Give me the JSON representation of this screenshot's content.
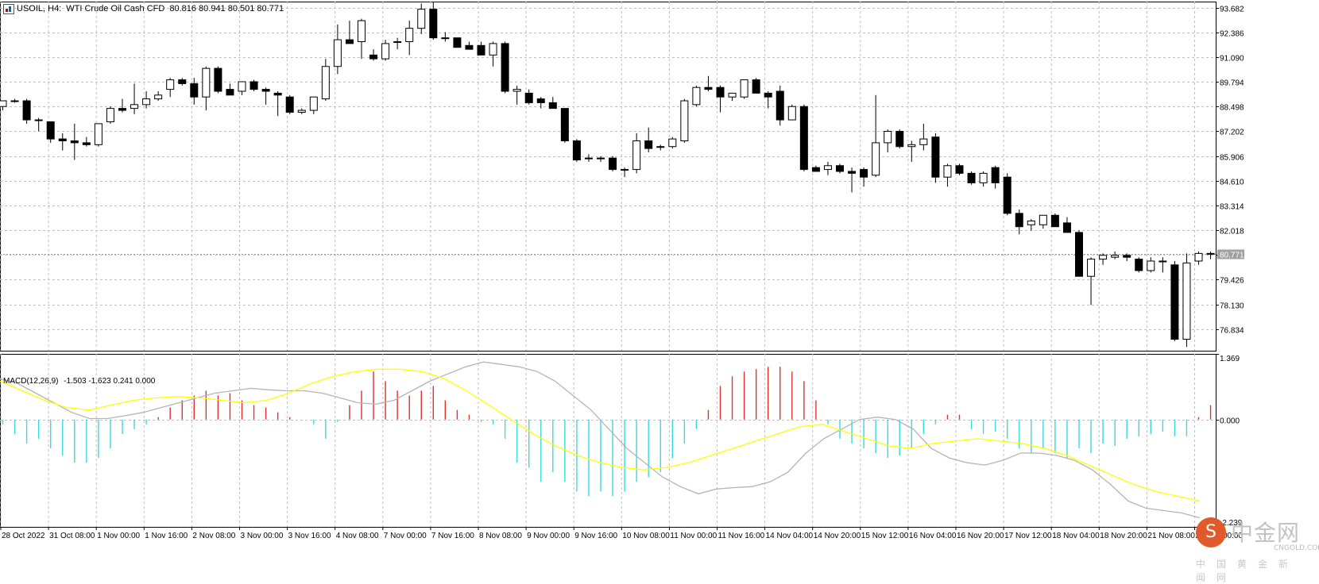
{
  "header": {
    "symbol": "USOIL, H4:",
    "description": "WTI Crude Oil Cash CFD",
    "ohlc": "80.816 80.941 80.501 80.771"
  },
  "macd_header": {
    "name": "MACD(12,26,9)",
    "values": "-1.503 -1.623 0.241 0.000"
  },
  "current_price_label": "80.771",
  "watermark": {
    "logo_glyph": "S",
    "brand": "中金网",
    "url": "CNGOLD.COM.CN",
    "subtitle": "中国黄金新闻网"
  },
  "colors": {
    "bull_body": "#ffffff",
    "bear_body": "#000000",
    "signal_line": "#ffff00",
    "macd_line": "#b4b4b4",
    "hist_pos": "#e03030",
    "hist_neg": "#39d9e0",
    "grid": "#c0c0c0"
  },
  "chart_data": [
    {
      "type": "candlestick",
      "y_ticks": [
        "93.682",
        "92.386",
        "91.090",
        "89.794",
        "88.498",
        "87.202",
        "85.906",
        "84.610",
        "83.314",
        "82.018",
        "80.722",
        "79.426",
        "78.130",
        "76.834"
      ],
      "ylim": [
        75.7,
        94.0
      ],
      "current_price": 80.771,
      "x_tick_labels": [
        "28 Oct 2022",
        "31 Oct 08:00",
        "1 Nov 00:00",
        "1 Nov 16:00",
        "2 Nov 08:00",
        "3 Nov 00:00",
        "3 Nov 16:00",
        "4 Nov 08:00",
        "7 Nov 00:00",
        "7 Nov 16:00",
        "8 Nov 08:00",
        "9 Nov 00:00",
        "9 Nov 16:00",
        "10 Nov 08:00",
        "11 Nov 00:00",
        "11 Nov 16:00",
        "14 Nov 04:00",
        "14 Nov 20:00",
        "15 Nov 12:00",
        "16 Nov 04:00",
        "16 Nov 20:00",
        "17 Nov 12:00",
        "18 Nov 04:00",
        "18 Nov 20:00",
        "21 Nov 08:00",
        "22 Nov 00:00"
      ],
      "candles": [
        [
          88.5,
          88.7,
          88.3,
          88.8
        ],
        [
          88.8,
          88.9,
          88.7,
          88.8
        ],
        [
          88.8,
          88.9,
          87.6,
          87.8
        ],
        [
          87.8,
          87.9,
          87.2,
          87.8
        ],
        [
          87.7,
          87.7,
          86.6,
          86.8
        ],
        [
          86.8,
          87.1,
          86.2,
          86.7
        ],
        [
          86.7,
          87.6,
          85.7,
          86.6
        ],
        [
          86.6,
          86.9,
          86.4,
          86.5
        ],
        [
          86.5,
          87.6,
          86.4,
          87.6
        ],
        [
          87.7,
          88.5,
          87.6,
          88.4
        ],
        [
          88.4,
          88.9,
          88.2,
          88.3
        ],
        [
          88.4,
          89.7,
          88.1,
          88.6
        ],
        [
          88.6,
          89.3,
          88.4,
          88.9
        ],
        [
          88.9,
          89.3,
          88.8,
          89.1
        ],
        [
          89.4,
          90.0,
          89.0,
          89.9
        ],
        [
          89.9,
          90.0,
          89.6,
          89.7
        ],
        [
          89.7,
          90.0,
          88.6,
          89.0
        ],
        [
          89.0,
          90.6,
          88.3,
          90.5
        ],
        [
          90.5,
          90.6,
          89.2,
          89.3
        ],
        [
          89.4,
          89.7,
          89.1,
          89.1
        ],
        [
          89.3,
          89.8,
          89.1,
          89.8
        ],
        [
          89.8,
          89.9,
          89.3,
          89.4
        ],
        [
          89.4,
          89.5,
          88.6,
          89.3
        ],
        [
          89.2,
          89.3,
          88.0,
          89.1
        ],
        [
          89.0,
          89.1,
          88.1,
          88.2
        ],
        [
          88.2,
          88.4,
          88.1,
          88.3
        ],
        [
          88.3,
          89.0,
          88.1,
          89.0
        ],
        [
          88.9,
          91.0,
          88.8,
          90.6
        ],
        [
          90.6,
          92.8,
          90.2,
          92.0
        ],
        [
          92.0,
          93.0,
          91.8,
          91.8
        ],
        [
          91.9,
          93.1,
          91.0,
          93.0
        ],
        [
          91.2,
          91.5,
          90.9,
          91.0
        ],
        [
          91.0,
          92.0,
          90.9,
          91.8
        ],
        [
          91.9,
          92.1,
          91.5,
          91.9
        ],
        [
          91.9,
          93.0,
          91.2,
          92.6
        ],
        [
          92.6,
          93.9,
          92.3,
          93.6
        ],
        [
          93.6,
          94.0,
          92.0,
          92.1
        ],
        [
          92.1,
          92.4,
          91.9,
          92.1
        ],
        [
          92.1,
          92.1,
          91.6,
          91.6
        ],
        [
          91.7,
          91.9,
          91.5,
          91.5
        ],
        [
          91.7,
          91.9,
          91.3,
          91.2
        ],
        [
          91.2,
          91.9,
          90.6,
          91.8
        ],
        [
          91.8,
          91.9,
          89.2,
          89.3
        ],
        [
          89.3,
          89.6,
          88.6,
          89.4
        ],
        [
          89.2,
          89.4,
          88.6,
          88.7
        ],
        [
          88.9,
          89.0,
          88.4,
          88.7
        ],
        [
          88.7,
          89.0,
          88.4,
          88.4
        ],
        [
          88.4,
          88.4,
          86.6,
          86.7
        ],
        [
          86.7,
          86.8,
          85.6,
          85.7
        ],
        [
          85.8,
          86.0,
          85.6,
          85.8
        ],
        [
          85.8,
          85.9,
          85.6,
          85.8
        ],
        [
          85.8,
          85.9,
          85.1,
          85.2
        ],
        [
          85.2,
          85.3,
          84.8,
          85.2
        ],
        [
          85.2,
          87.1,
          85.0,
          86.7
        ],
        [
          86.7,
          87.4,
          86.1,
          86.3
        ],
        [
          86.4,
          86.5,
          86.2,
          86.4
        ],
        [
          86.4,
          86.9,
          86.3,
          86.8
        ],
        [
          86.7,
          88.9,
          86.6,
          88.8
        ],
        [
          88.6,
          89.6,
          88.5,
          89.5
        ],
        [
          89.5,
          90.1,
          89.3,
          89.4
        ],
        [
          89.5,
          89.6,
          88.2,
          89.0
        ],
        [
          89.0,
          89.2,
          88.8,
          89.2
        ],
        [
          89.0,
          89.9,
          88.9,
          89.9
        ],
        [
          89.9,
          90.0,
          89.2,
          89.2
        ],
        [
          89.2,
          89.3,
          88.4,
          89.0
        ],
        [
          89.3,
          89.6,
          87.5,
          87.8
        ],
        [
          87.8,
          88.6,
          87.8,
          88.5
        ],
        [
          88.5,
          88.6,
          85.1,
          85.2
        ],
        [
          85.3,
          85.4,
          85.1,
          85.1
        ],
        [
          85.2,
          85.6,
          84.9,
          85.4
        ],
        [
          85.4,
          85.5,
          85.0,
          85.1
        ],
        [
          85.1,
          85.3,
          84.0,
          85.0
        ],
        [
          85.2,
          85.3,
          84.3,
          84.8
        ],
        [
          84.9,
          89.1,
          84.8,
          86.6
        ],
        [
          86.6,
          87.3,
          86.1,
          87.2
        ],
        [
          87.2,
          87.3,
          86.3,
          86.4
        ],
        [
          86.4,
          86.7,
          85.6,
          86.5
        ],
        [
          86.5,
          87.6,
          86.2,
          86.8
        ],
        [
          86.9,
          87.1,
          84.5,
          84.8
        ],
        [
          84.8,
          85.5,
          84.3,
          85.4
        ],
        [
          85.4,
          85.5,
          84.9,
          85.0
        ],
        [
          85.0,
          85.1,
          84.4,
          84.5
        ],
        [
          84.5,
          85.1,
          84.3,
          85.0
        ],
        [
          85.3,
          85.4,
          84.2,
          84.5
        ],
        [
          84.8,
          85.0,
          82.8,
          82.9
        ],
        [
          82.9,
          83.1,
          81.8,
          82.2
        ],
        [
          82.3,
          82.6,
          82.0,
          82.5
        ],
        [
          82.3,
          82.8,
          82.1,
          82.8
        ],
        [
          82.8,
          82.9,
          82.2,
          82.2
        ],
        [
          82.4,
          82.7,
          81.9,
          81.9
        ],
        [
          81.9,
          82.0,
          79.6,
          79.6
        ],
        [
          79.6,
          80.6,
          78.1,
          80.5
        ],
        [
          80.5,
          80.8,
          80.2,
          80.7
        ],
        [
          80.6,
          80.9,
          80.5,
          80.7
        ],
        [
          80.7,
          80.8,
          80.4,
          80.6
        ],
        [
          80.5,
          80.6,
          79.8,
          79.9
        ],
        [
          79.9,
          80.6,
          79.8,
          80.4
        ],
        [
          80.4,
          80.6,
          79.8,
          80.4
        ],
        [
          80.2,
          80.4,
          76.2,
          76.3
        ],
        [
          76.3,
          80.8,
          75.9,
          80.3
        ],
        [
          80.4,
          80.9,
          80.2,
          80.8
        ],
        [
          80.8,
          80.9,
          80.5,
          80.771
        ]
      ]
    },
    {
      "type": "macd",
      "name": "MACD(12,26,9)",
      "y_ticks": [
        "1.369",
        "0.000",
        "-2.239"
      ],
      "ylim": [
        -2.239,
        1.369
      ],
      "histogram": [
        -0.1,
        -0.3,
        -0.5,
        -0.4,
        -0.6,
        -0.75,
        -0.9,
        -0.9,
        -0.8,
        -0.6,
        -0.3,
        -0.2,
        -0.1,
        0.05,
        0.25,
        0.4,
        0.5,
        0.6,
        0.5,
        0.55,
        0.4,
        0.3,
        0.25,
        0.15,
        0.05,
        0.0,
        -0.1,
        -0.4,
        -0.05,
        0.3,
        0.6,
        1.0,
        0.8,
        0.6,
        0.5,
        0.6,
        0.7,
        0.4,
        0.2,
        0.1,
        -0.05,
        -0.1,
        -0.4,
        -0.9,
        -1.0,
        -1.3,
        -1.1,
        -1.3,
        -1.5,
        -1.6,
        -1.5,
        -1.6,
        -1.5,
        -1.3,
        -1.2,
        -1.1,
        -0.8,
        -0.5,
        -0.2,
        0.2,
        0.7,
        0.9,
        1.0,
        1.05,
        1.1,
        1.1,
        1.0,
        0.8,
        0.4,
        -0.1,
        -0.4,
        -0.5,
        -0.6,
        -0.7,
        -0.8,
        -0.75,
        -0.6,
        -0.3,
        -0.1,
        0.1,
        0.1,
        -0.2,
        -0.3,
        -0.25,
        -0.4,
        -0.6,
        -0.7,
        -0.6,
        -0.7,
        -0.8,
        -0.6,
        -0.7,
        -0.5,
        -0.55,
        -0.4,
        -0.35,
        -0.3,
        -0.25,
        -0.35,
        -0.35,
        0.05,
        0.3
      ],
      "macd_line": [
        0.85,
        0.75,
        0.55,
        0.35,
        0.15,
        0.02,
        0.02,
        0.08,
        0.15,
        0.25,
        0.35,
        0.45,
        0.55,
        0.6,
        0.65,
        0.62,
        0.6,
        0.6,
        0.55,
        0.45,
        0.35,
        0.32,
        0.4,
        0.6,
        0.8,
        0.95,
        1.1,
        1.2,
        1.15,
        1.1,
        1.0,
        0.8,
        0.5,
        0.2,
        -0.2,
        -0.6,
        -0.9,
        -1.2,
        -1.4,
        -1.55,
        -1.45,
        -1.42,
        -1.4,
        -1.3,
        -1.1,
        -0.7,
        -0.4,
        -0.2,
        0.0,
        0.05,
        0.0,
        -0.2,
        -0.6,
        -0.8,
        -0.9,
        -0.95,
        -0.85,
        -0.7,
        -0.7,
        -0.75,
        -0.85,
        -1.05,
        -1.35,
        -1.7,
        -1.85,
        -1.9,
        -1.95,
        -2.05
      ],
      "signal_line": [
        0.8,
        0.6,
        0.4,
        0.25,
        0.2,
        0.3,
        0.4,
        0.45,
        0.48,
        0.45,
        0.4,
        0.35,
        0.4,
        0.55,
        0.75,
        0.9,
        1.0,
        1.05,
        1.05,
        1.0,
        0.85,
        0.6,
        0.3,
        0.0,
        -0.3,
        -0.55,
        -0.75,
        -0.9,
        -1.0,
        -1.05,
        -1.0,
        -0.9,
        -0.75,
        -0.6,
        -0.45,
        -0.3,
        -0.15,
        -0.1,
        -0.25,
        -0.4,
        -0.55,
        -0.6,
        -0.5,
        -0.45,
        -0.4,
        -0.45,
        -0.5,
        -0.6,
        -0.75,
        -0.95,
        -1.15,
        -1.35,
        -1.5,
        -1.6,
        -1.7
      ]
    }
  ]
}
